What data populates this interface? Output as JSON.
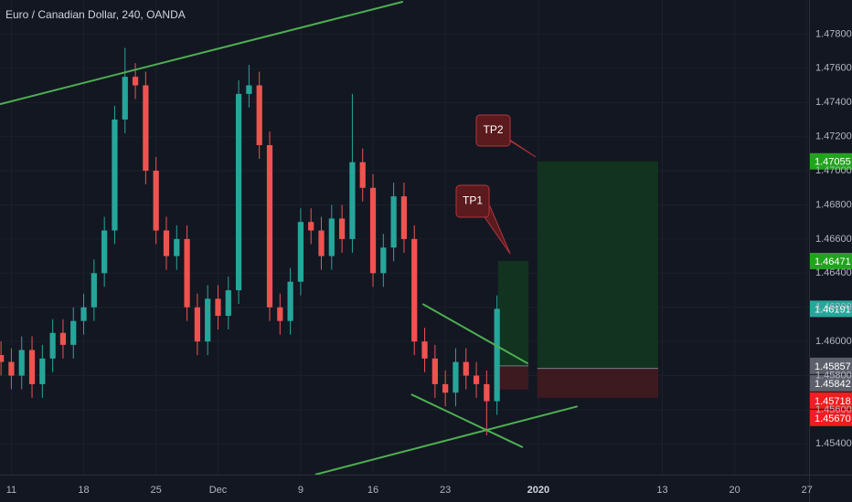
{
  "chart_data": {
    "type": "candlestick",
    "title": "Euro / Canadian Dollar, 240, OANDA",
    "up_color": "#26a69a",
    "down_color": "#ef5350",
    "line_color": "#4caf50",
    "grid": true,
    "xlim": [
      9.9,
      88.2
    ],
    "ylim": [
      1.4522,
      1.48
    ],
    "xticks": [
      {
        "value": 11,
        "label": "11"
      },
      {
        "value": 18,
        "label": "18"
      },
      {
        "value": 25,
        "label": "25"
      },
      {
        "value": 31,
        "label": "Dec"
      },
      {
        "value": 39,
        "label": "9"
      },
      {
        "value": 46,
        "label": "16"
      },
      {
        "value": 53,
        "label": "23"
      },
      {
        "value": 62,
        "label": "2020"
      },
      {
        "value": 74,
        "label": "13"
      },
      {
        "value": 81,
        "label": "20"
      },
      {
        "value": 88,
        "label": "27"
      }
    ],
    "yticks": [
      {
        "value": 1.454,
        "label": "1.45400"
      },
      {
        "value": 1.456,
        "label": "1.45600"
      },
      {
        "value": 1.458,
        "label": "1.45800"
      },
      {
        "value": 1.46,
        "label": "1.46000"
      },
      {
        "value": 1.462,
        "label": "1.46200"
      },
      {
        "value": 1.464,
        "label": "1.46400"
      },
      {
        "value": 1.466,
        "label": "1.46600"
      },
      {
        "value": 1.468,
        "label": "1.46800"
      },
      {
        "value": 1.47,
        "label": "1.47000"
      },
      {
        "value": 1.472,
        "label": "1.47200"
      },
      {
        "value": 1.474,
        "label": "1.47400"
      },
      {
        "value": 1.476,
        "label": "1.47600"
      },
      {
        "value": 1.478,
        "label": "1.47800"
      }
    ],
    "x": [
      10,
      11,
      12,
      13,
      14,
      15,
      16,
      17,
      18,
      19,
      20,
      21,
      22,
      23,
      24,
      25,
      26,
      27,
      28,
      29,
      30,
      31,
      32,
      33,
      34,
      35,
      36,
      37,
      38,
      39,
      40,
      41,
      42,
      43,
      44,
      45,
      46,
      47,
      48,
      49,
      50,
      51,
      52,
      53,
      54,
      55,
      56,
      57,
      58
    ],
    "open": [
      1.4592,
      1.4588,
      1.458,
      1.4595,
      1.4575,
      1.459,
      1.4605,
      1.4598,
      1.4612,
      1.462,
      1.464,
      1.4665,
      1.473,
      1.4755,
      1.475,
      1.47,
      1.4665,
      1.465,
      1.466,
      1.462,
      1.46,
      1.4625,
      1.4615,
      1.463,
      1.4745,
      1.475,
      1.4715,
      1.462,
      1.4612,
      1.4635,
      1.467,
      1.4665,
      1.465,
      1.4672,
      1.466,
      1.4705,
      1.469,
      1.464,
      1.4655,
      1.4685,
      1.466,
      1.46,
      1.459,
      1.4575,
      1.457,
      1.4588,
      1.458,
      1.4575,
      1.4565
    ],
    "high": [
      1.46,
      1.4596,
      1.4603,
      1.4603,
      1.4598,
      1.4613,
      1.4613,
      1.462,
      1.4628,
      1.4648,
      1.4673,
      1.4738,
      1.4772,
      1.4763,
      1.4758,
      1.4708,
      1.4673,
      1.4668,
      1.4668,
      1.4628,
      1.4633,
      1.4633,
      1.4638,
      1.4753,
      1.4762,
      1.4758,
      1.4723,
      1.4628,
      1.4643,
      1.4678,
      1.4678,
      1.4673,
      1.468,
      1.468,
      1.4745,
      1.4713,
      1.4698,
      1.4663,
      1.4693,
      1.4693,
      1.4668,
      1.4608,
      1.4598,
      1.4583,
      1.4596,
      1.4596,
      1.4588,
      1.4583,
      1.4627
    ],
    "low": [
      1.458,
      1.4572,
      1.4572,
      1.4567,
      1.4567,
      1.4582,
      1.459,
      1.459,
      1.4604,
      1.4612,
      1.4632,
      1.4657,
      1.4722,
      1.4742,
      1.4692,
      1.4657,
      1.4642,
      1.4642,
      1.4612,
      1.4592,
      1.4592,
      1.4607,
      1.4607,
      1.4622,
      1.4737,
      1.4707,
      1.4612,
      1.4604,
      1.4604,
      1.4627,
      1.4657,
      1.4642,
      1.4642,
      1.4652,
      1.4652,
      1.4682,
      1.4632,
      1.4632,
      1.4647,
      1.4652,
      1.4592,
      1.4582,
      1.4567,
      1.4562,
      1.4562,
      1.4572,
      1.4567,
      1.4545,
      1.4557
    ],
    "close": [
      1.4588,
      1.458,
      1.4595,
      1.4575,
      1.459,
      1.4605,
      1.4598,
      1.4612,
      1.462,
      1.464,
      1.4665,
      1.473,
      1.4755,
      1.475,
      1.47,
      1.4665,
      1.465,
      1.466,
      1.462,
      1.46,
      1.4625,
      1.4615,
      1.463,
      1.4745,
      1.475,
      1.4715,
      1.462,
      1.4612,
      1.4635,
      1.467,
      1.4665,
      1.465,
      1.4672,
      1.466,
      1.4705,
      1.469,
      1.464,
      1.4655,
      1.4685,
      1.466,
      1.46,
      1.459,
      1.4575,
      1.457,
      1.4588,
      1.458,
      1.4575,
      1.4565,
      1.46191
    ],
    "last_price": {
      "value": 1.46191,
      "label": "1.46191"
    },
    "trend_lines": [
      {
        "x": [
          9.9,
          48.9
        ],
        "y": [
          1.4739,
          1.4799
        ]
      },
      {
        "x": [
          40.4,
          65.8
        ],
        "y": [
          1.4522,
          1.4562
        ]
      },
      {
        "x": [
          50.8,
          61.0
        ],
        "y": [
          1.4622,
          1.4587
        ]
      },
      {
        "x": [
          49.7,
          60.5
        ],
        "y": [
          1.4569,
          1.4538
        ]
      }
    ],
    "positions": [
      {
        "name": "TP1",
        "x": [
          58.1,
          61.05
        ],
        "target": {
          "value": 1.46471,
          "label": "1.46471"
        },
        "entry": {
          "value": 1.45857,
          "label": "1.45857"
        },
        "stop": {
          "value": 1.45718,
          "label": "1.45718"
        }
      },
      {
        "name": "TP2",
        "x": [
          61.9,
          73.6
        ],
        "target": {
          "value": 1.47055,
          "label": "1.47055"
        },
        "entry": {
          "value": 1.45842,
          "label": "1.45842"
        },
        "stop": {
          "value": 1.4567,
          "label": "1.45670"
        }
      }
    ]
  }
}
